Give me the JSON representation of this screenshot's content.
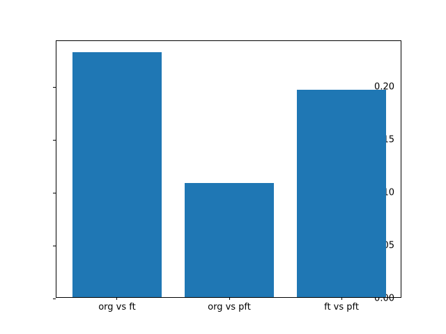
{
  "chart_data": {
    "type": "bar",
    "categories": [
      "org vs ft",
      "org vs pft",
      "ft vs pft"
    ],
    "values": [
      0.232,
      0.108,
      0.196
    ],
    "title": "",
    "xlabel": "",
    "ylabel": "",
    "ylim": [
      0,
      0.2436
    ],
    "xlim": [
      -0.54,
      2.54
    ],
    "yticks": [
      0.0,
      0.05,
      0.1,
      0.15,
      0.2
    ],
    "ytick_labels": [
      "0.00",
      "0.05",
      "0.10",
      "0.15",
      "0.20"
    ],
    "bar_width_units": 0.8,
    "bar_color": "#1f77b4",
    "spine_color": "#000000",
    "text_color": "#000000",
    "background_color": "#ffffff",
    "grid": false,
    "legend": null
  }
}
